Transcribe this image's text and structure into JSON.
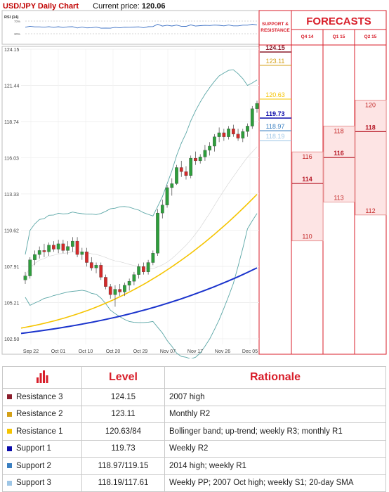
{
  "header": {
    "pair_title": "USD/JPY Daily Chart",
    "current_label": "Current price:",
    "current_value": "120.06"
  },
  "rsi": {
    "label": "RSI (14)",
    "upper": "70%",
    "lower": "30%"
  },
  "sr_header": "SUPPORT & RESISTANCE",
  "forecasts": {
    "title": "FORECASTS",
    "quarters": [
      {
        "label": "Q4 14",
        "high": 116,
        "mid": 114,
        "low": 110
      },
      {
        "label": "Q1 15",
        "high": 118,
        "mid": 116,
        "low": 113
      },
      {
        "label": "Q2 15",
        "high": 120,
        "mid": 118,
        "low": 112
      }
    ]
  },
  "colors": {
    "accent": "#d81e2a",
    "resistance3": "#8b1d2c",
    "resistance2": "#d4a017",
    "resistance1": "#f5c400",
    "support1": "#0a0aaa",
    "support2": "#3a7fc1",
    "support3": "#9ec6e6",
    "candle_up": "#2e9e3c",
    "candle_down": "#d42a2a",
    "bollinger": "#5aa6a6",
    "sma_yellow": "#f5c400",
    "sma_blue": "#1a33cc",
    "forecast_fill": "#fde4e4",
    "forecast_line": "#e48888"
  },
  "chart_data": {
    "type": "candlestick",
    "title": "USD/JPY Daily Chart",
    "y_ticks": [
      "124.15",
      "121.44",
      "118.74",
      "116.03",
      "113.33",
      "110.62",
      "107.91",
      "105.21",
      "102.50"
    ],
    "x_ticks": [
      "Sep 22",
      "Oct 01",
      "Oct 10",
      "Oct 20",
      "Oct 29",
      "Nov 07",
      "Nov 17",
      "Nov 26",
      "Dec 05"
    ],
    "ylim": [
      102.5,
      124.15
    ],
    "levels": [
      {
        "name": "Resistance 3",
        "value": 124.15
      },
      {
        "name": "Resistance 2",
        "value": 123.11
      },
      {
        "name": "Resistance 1",
        "value": 120.63
      },
      {
        "name": "Support 1",
        "value": 119.73
      },
      {
        "name": "Support 2",
        "value": 118.97
      },
      {
        "name": "Support 3",
        "value": 118.19
      }
    ],
    "candles": [
      [
        106.9,
        107.5,
        106.6,
        107.2
      ],
      [
        107.2,
        108.6,
        107.0,
        108.4
      ],
      [
        108.4,
        109.1,
        108.0,
        108.8
      ],
      [
        108.8,
        109.4,
        108.5,
        109.1
      ],
      [
        109.1,
        109.6,
        108.6,
        109.0
      ],
      [
        109.0,
        109.7,
        108.7,
        109.5
      ],
      [
        109.5,
        109.8,
        109.0,
        109.2
      ],
      [
        109.2,
        109.9,
        108.9,
        109.6
      ],
      [
        109.6,
        109.9,
        108.9,
        109.1
      ],
      [
        109.1,
        109.8,
        108.8,
        109.4
      ],
      [
        109.4,
        110.1,
        109.0,
        109.8
      ],
      [
        109.8,
        110.1,
        108.6,
        108.8
      ],
      [
        108.8,
        109.3,
        108.4,
        109.0
      ],
      [
        109.0,
        109.3,
        107.9,
        108.2
      ],
      [
        108.2,
        108.6,
        107.6,
        107.8
      ],
      [
        107.8,
        108.2,
        107.4,
        108.0
      ],
      [
        108.0,
        108.2,
        106.9,
        107.1
      ],
      [
        107.1,
        107.3,
        106.2,
        106.4
      ],
      [
        106.4,
        106.6,
        105.5,
        105.8
      ],
      [
        105.8,
        106.5,
        104.9,
        106.2
      ],
      [
        106.2,
        106.6,
        105.7,
        106.0
      ],
      [
        106.0,
        106.7,
        105.7,
        106.5
      ],
      [
        106.5,
        107.0,
        106.1,
        106.8
      ],
      [
        106.8,
        107.5,
        106.5,
        107.3
      ],
      [
        107.3,
        108.1,
        107.0,
        107.9
      ],
      [
        107.9,
        108.2,
        107.3,
        107.5
      ],
      [
        107.5,
        108.4,
        107.3,
        108.2
      ],
      [
        108.2,
        109.1,
        108.0,
        108.9
      ],
      [
        108.9,
        112.2,
        108.7,
        111.9
      ],
      [
        111.9,
        112.9,
        111.5,
        112.5
      ],
      [
        112.5,
        114.0,
        112.3,
        113.8
      ],
      [
        113.8,
        114.5,
        113.2,
        114.1
      ],
      [
        114.1,
        115.5,
        114.0,
        115.3
      ],
      [
        115.3,
        115.8,
        114.6,
        115.0
      ],
      [
        115.0,
        115.4,
        114.4,
        114.7
      ],
      [
        114.7,
        116.2,
        114.5,
        116.0
      ],
      [
        116.0,
        116.5,
        115.5,
        115.8
      ],
      [
        115.8,
        116.3,
        115.6,
        116.1
      ],
      [
        116.1,
        117.0,
        115.8,
        116.6
      ],
      [
        116.6,
        117.2,
        116.2,
        116.9
      ],
      [
        116.9,
        117.8,
        116.5,
        117.6
      ],
      [
        117.6,
        118.3,
        117.2,
        117.9
      ],
      [
        117.9,
        118.2,
        117.3,
        117.6
      ],
      [
        117.6,
        118.4,
        117.4,
        118.2
      ],
      [
        118.2,
        118.5,
        117.6,
        117.8
      ],
      [
        117.8,
        118.2,
        117.3,
        117.5
      ],
      [
        117.5,
        118.2,
        117.2,
        118.0
      ],
      [
        118.0,
        118.6,
        117.6,
        118.4
      ],
      [
        118.4,
        119.9,
        118.2,
        119.7
      ],
      [
        119.7,
        120.3,
        119.4,
        120.1
      ]
    ]
  },
  "table": {
    "col_level": "Level",
    "col_rationale": "Rationale",
    "rows": [
      {
        "name": "Resistance 3",
        "level": "124.15",
        "rationale": "2007 high",
        "color": "#8b1d2c"
      },
      {
        "name": "Resistance 2",
        "level": "123.11",
        "rationale": "Monthly R2",
        "color": "#d4a017"
      },
      {
        "name": "Resistance 1",
        "level": "120.63/84",
        "rationale": "Bollinger band; up-trend; weekly R3; monthly R1",
        "color": "#f5c400"
      },
      {
        "name": "Support 1",
        "level": "119.73",
        "rationale": "Weekly R2",
        "color": "#0a0aaa"
      },
      {
        "name": "Support 2",
        "level": "118.97/119.15",
        "rationale": "2014 high; weekly R1",
        "color": "#3a7fc1"
      },
      {
        "name": "Support 3",
        "level": "118.19/117.61",
        "rationale": "Weekly PP; 2007 Oct high; weekly S1; 20-day SMA",
        "color": "#9ec6e6"
      }
    ]
  }
}
